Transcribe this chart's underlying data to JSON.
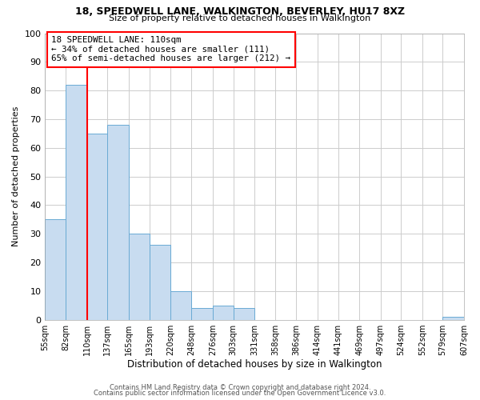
{
  "title1": "18, SPEEDWELL LANE, WALKINGTON, BEVERLEY, HU17 8XZ",
  "title2": "Size of property relative to detached houses in Walkington",
  "xlabel": "Distribution of detached houses by size in Walkington",
  "ylabel": "Number of detached properties",
  "bin_edges": [
    55,
    82,
    110,
    137,
    165,
    193,
    220,
    248,
    276,
    303,
    331,
    358,
    386,
    414,
    441,
    469,
    497,
    524,
    552,
    579,
    607
  ],
  "bin_labels": [
    "55sqm",
    "82sqm",
    "110sqm",
    "137sqm",
    "165sqm",
    "193sqm",
    "220sqm",
    "248sqm",
    "276sqm",
    "303sqm",
    "331sqm",
    "358sqm",
    "386sqm",
    "414sqm",
    "441sqm",
    "469sqm",
    "497sqm",
    "524sqm",
    "552sqm",
    "579sqm",
    "607sqm"
  ],
  "counts": [
    35,
    82,
    65,
    68,
    30,
    26,
    10,
    4,
    5,
    4,
    0,
    0,
    0,
    0,
    0,
    0,
    0,
    0,
    0,
    1
  ],
  "bar_color": "#c8dcf0",
  "bar_edge_color": "#6aaad4",
  "ref_line_x": 110,
  "ref_line_color": "red",
  "ylim": [
    0,
    100
  ],
  "yticks": [
    0,
    10,
    20,
    30,
    40,
    50,
    60,
    70,
    80,
    90,
    100
  ],
  "annotation_title": "18 SPEEDWELL LANE: 110sqm",
  "annotation_line1": "← 34% of detached houses are smaller (111)",
  "annotation_line2": "65% of semi-detached houses are larger (212) →",
  "footer1": "Contains HM Land Registry data © Crown copyright and database right 2024.",
  "footer2": "Contains public sector information licensed under the Open Government Licence v3.0.",
  "background_color": "#ffffff",
  "grid_color": "#cccccc"
}
